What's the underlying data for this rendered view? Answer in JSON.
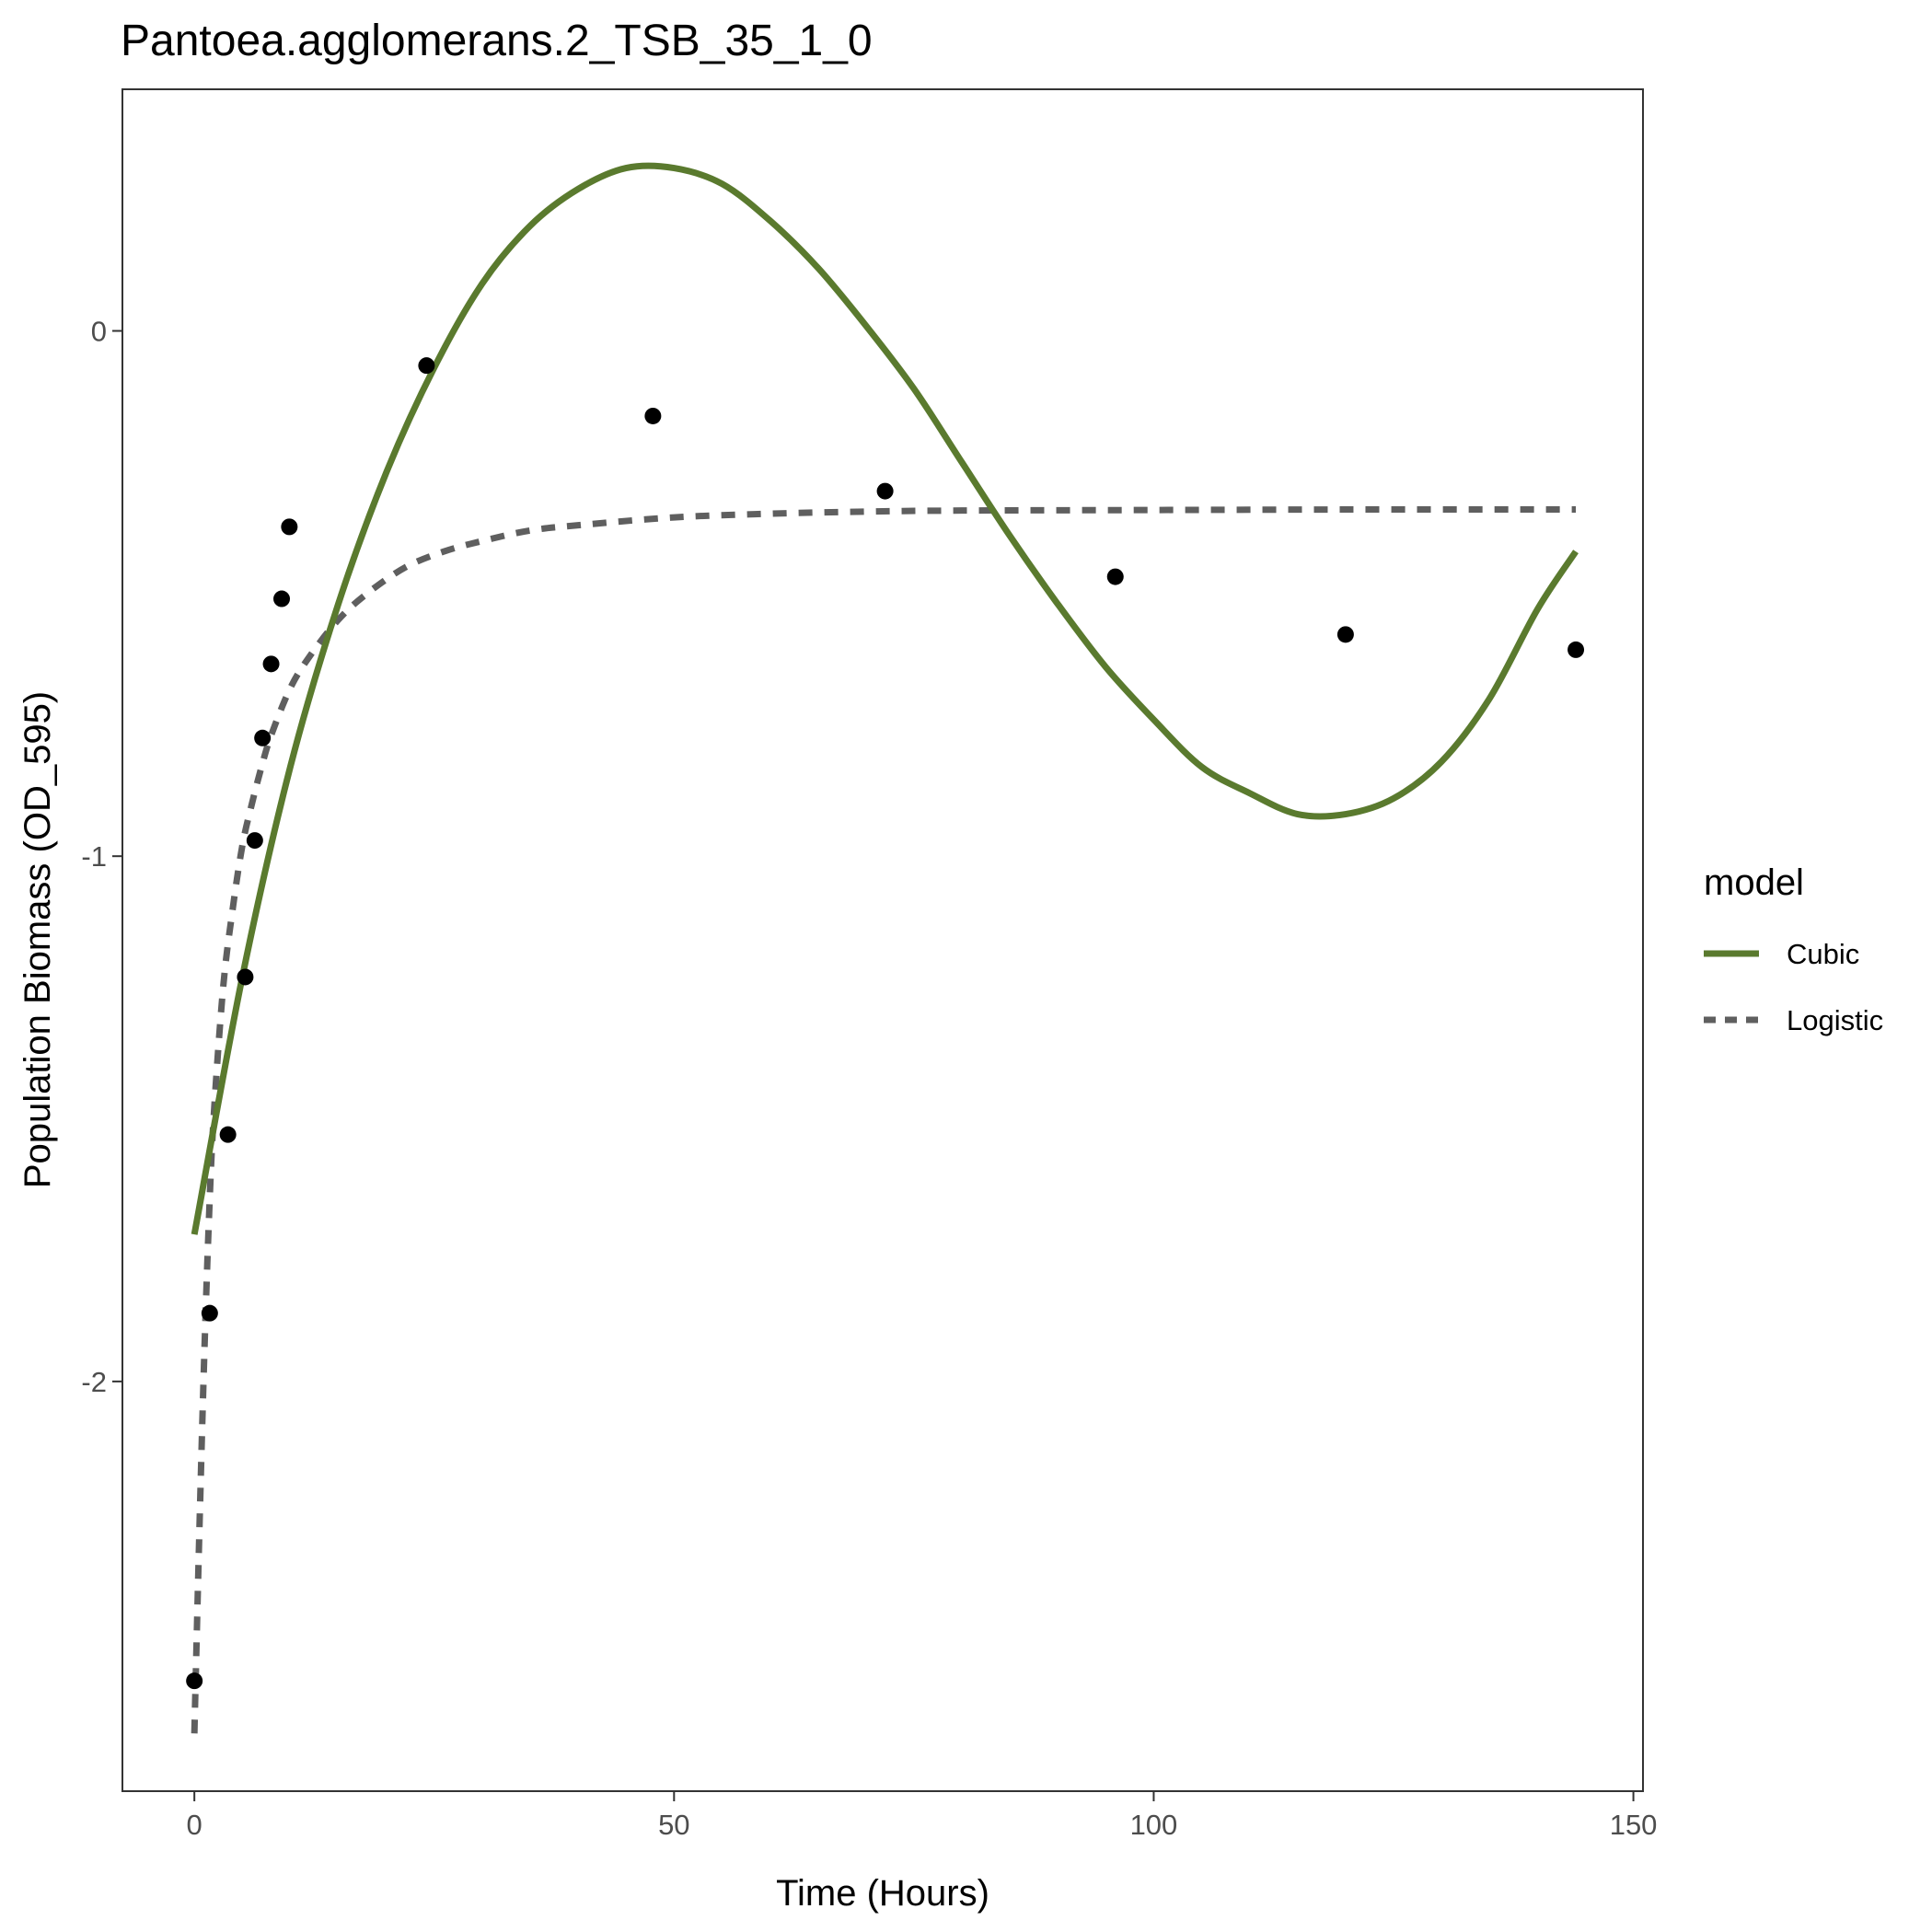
{
  "chart_data": {
    "type": "line",
    "title": "Pantoea.agglomerans.2_TSB_35_1_0",
    "xlabel": "Time (Hours)",
    "ylabel": "Population Biomass (OD_595)",
    "xlim": [
      -7.5,
      151
    ],
    "ylim": [
      -2.78,
      0.46
    ],
    "x_ticks": [
      0,
      50,
      100,
      150
    ],
    "x_tick_labels": [
      "0",
      "50",
      "100",
      "150"
    ],
    "y_ticks": [
      -2,
      -1,
      0
    ],
    "y_tick_labels": [
      "-2",
      "-1",
      "0"
    ],
    "grid": false,
    "legend": {
      "title": "model",
      "position": "right",
      "entries": [
        {
          "label": "Cubic",
          "color": "#5a7a2e",
          "style": "solid"
        },
        {
          "label": "Logistic",
          "color": "#5f5f5f",
          "style": "dashed"
        }
      ]
    },
    "points": {
      "color": "#000000",
      "x": [
        0,
        1.6,
        3.5,
        5.3,
        6.3,
        7.1,
        8.0,
        9.1,
        9.9,
        24.2,
        47.8,
        72,
        96,
        120,
        144
      ],
      "y": [
        -2.57,
        -1.87,
        -1.53,
        -1.23,
        -0.97,
        -0.775,
        -0.634,
        -0.51,
        -0.373,
        -0.066,
        -0.162,
        -0.305,
        -0.468,
        -0.578,
        -0.607
      ]
    },
    "series": [
      {
        "name": "Cubic",
        "color": "#5a7a2e",
        "style": "solid",
        "x": [
          0,
          5,
          10,
          15,
          20,
          25,
          30,
          35,
          40,
          45,
          50,
          55,
          60,
          65,
          70,
          75,
          80,
          85,
          90,
          95,
          100,
          105,
          110,
          115,
          120,
          125,
          130,
          135,
          140,
          144
        ],
        "y": [
          -1.72,
          -1.23,
          -0.83,
          -0.52,
          -0.27,
          -0.07,
          0.09,
          0.2,
          0.27,
          0.31,
          0.31,
          0.28,
          0.21,
          0.12,
          0.01,
          -0.11,
          -0.25,
          -0.39,
          -0.52,
          -0.64,
          -0.74,
          -0.83,
          -0.88,
          -0.92,
          -0.92,
          -0.89,
          -0.82,
          -0.7,
          -0.53,
          -0.42
        ]
      },
      {
        "name": "Logistic",
        "color": "#5f5f5f",
        "style": "dashed",
        "x": [
          0,
          0.5,
          1,
          1.5,
          2,
          3,
          4,
          5,
          6,
          7,
          8,
          10,
          12,
          15,
          18,
          22,
          26,
          30,
          35,
          40,
          50,
          60,
          70,
          80,
          100,
          120,
          144
        ],
        "y": [
          -2.67,
          -2.3,
          -1.97,
          -1.7,
          -1.5,
          -1.25,
          -1.1,
          -0.98,
          -0.9,
          -0.83,
          -0.77,
          -0.68,
          -0.62,
          -0.55,
          -0.5,
          -0.45,
          -0.42,
          -0.4,
          -0.38,
          -0.37,
          -0.355,
          -0.348,
          -0.344,
          -0.342,
          -0.341,
          -0.34,
          -0.34
        ]
      }
    ]
  }
}
